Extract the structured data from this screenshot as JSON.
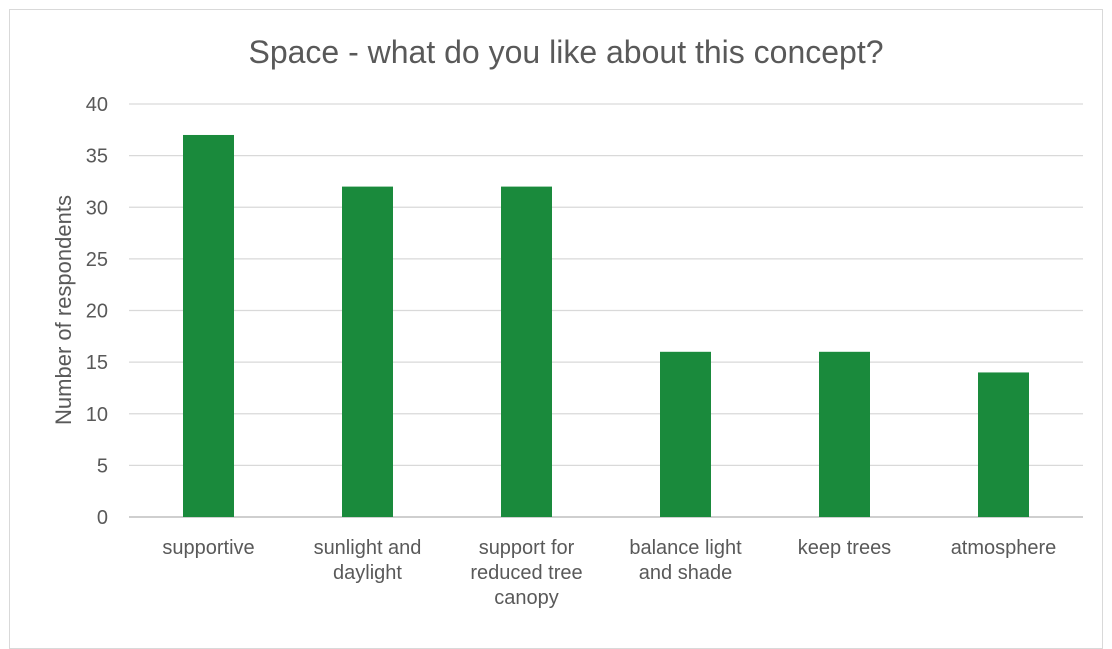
{
  "chart_data": {
    "type": "bar",
    "title": "Space - what do you like about this concept?",
    "xlabel": "",
    "ylabel": "Number of respondents",
    "ylim": [
      0,
      40
    ],
    "yticks": [
      0,
      5,
      10,
      15,
      20,
      25,
      30,
      35,
      40
    ],
    "grid": true,
    "categories": [
      [
        "supportive"
      ],
      [
        "sunlight and",
        "daylight"
      ],
      [
        "support for",
        "reduced tree",
        "canopy"
      ],
      [
        "balance light",
        "and shade"
      ],
      [
        "keep trees"
      ],
      [
        "atmosphere"
      ]
    ],
    "values": [
      37,
      32,
      32,
      16,
      16,
      14
    ],
    "bar_color": "#1a8a3c"
  }
}
